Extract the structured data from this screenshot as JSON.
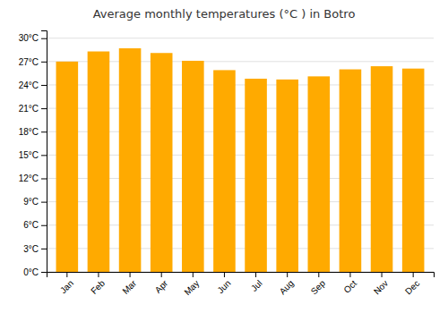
{
  "chart_data": {
    "type": "bar",
    "title": "Average monthly temperatures (°C ) in Botro",
    "categories": [
      "Jan",
      "Feb",
      "Mar",
      "Apr",
      "May",
      "Jun",
      "Jul",
      "Aug",
      "Sep",
      "Oct",
      "Nov",
      "Dec"
    ],
    "values": [
      27.0,
      28.3,
      28.7,
      28.1,
      27.1,
      25.9,
      24.8,
      24.7,
      25.1,
      26.0,
      26.4,
      26.1
    ],
    "color": "#FFAA00",
    "ylim": [
      0,
      31
    ],
    "yticks": [
      {
        "value": 0,
        "label": "0°C"
      },
      {
        "value": 3,
        "label": "3°C"
      },
      {
        "value": 6,
        "label": "6°C"
      },
      {
        "value": 9,
        "label": "9°C"
      },
      {
        "value": 12,
        "label": "12°C"
      },
      {
        "value": 15,
        "label": "15°C"
      },
      {
        "value": 18,
        "label": "18°C"
      },
      {
        "value": 21,
        "label": "21°C"
      },
      {
        "value": 24,
        "label": "24°C"
      },
      {
        "value": 27,
        "label": "27°C"
      },
      {
        "value": 30,
        "label": "30°C"
      }
    ],
    "grid": true
  }
}
